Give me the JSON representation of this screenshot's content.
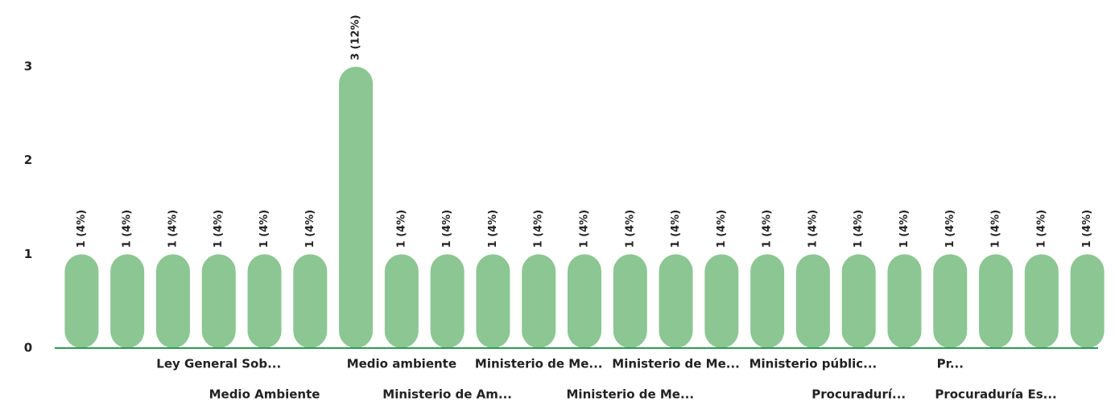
{
  "chart_data": {
    "type": "bar",
    "categories": [
      null,
      null,
      null,
      "Ley General Sob...",
      "Medio Ambiente",
      null,
      null,
      "Medio ambiente",
      "Ministerio de Am...",
      null,
      "Ministerio de Me...",
      null,
      "Ministerio de Me...",
      "Ministerio de Me...",
      null,
      null,
      "Ministerio públic...",
      "Procuradurí...",
      null,
      "Pr...",
      "Procuraduría Es...",
      null,
      null
    ],
    "values": [
      1,
      1,
      1,
      1,
      1,
      1,
      3,
      1,
      1,
      1,
      1,
      1,
      1,
      1,
      1,
      1,
      1,
      1,
      1,
      1,
      1,
      1,
      1
    ],
    "value_labels": [
      "1 (4%)",
      "1 (4%)",
      "1 (4%)",
      "1 (4%)",
      "1 (4%)",
      "1 (4%)",
      "3 (12%)",
      "1 (4%)",
      "1 (4%)",
      "1 (4%)",
      "1 (4%)",
      "1 (4%)",
      "1 (4%)",
      "1 (4%)",
      "1 (4%)",
      "1 (4%)",
      "1 (4%)",
      "1 (4%)",
      "1 (4%)",
      "1 (4%)",
      "1 (4%)",
      "1 (4%)",
      "1 (4%)"
    ],
    "color": "#8cc693",
    "axis_color": "#2e9a55",
    "ylim": [
      0,
      3
    ],
    "yticks": [
      0,
      1,
      2,
      3
    ],
    "grid": false
  }
}
